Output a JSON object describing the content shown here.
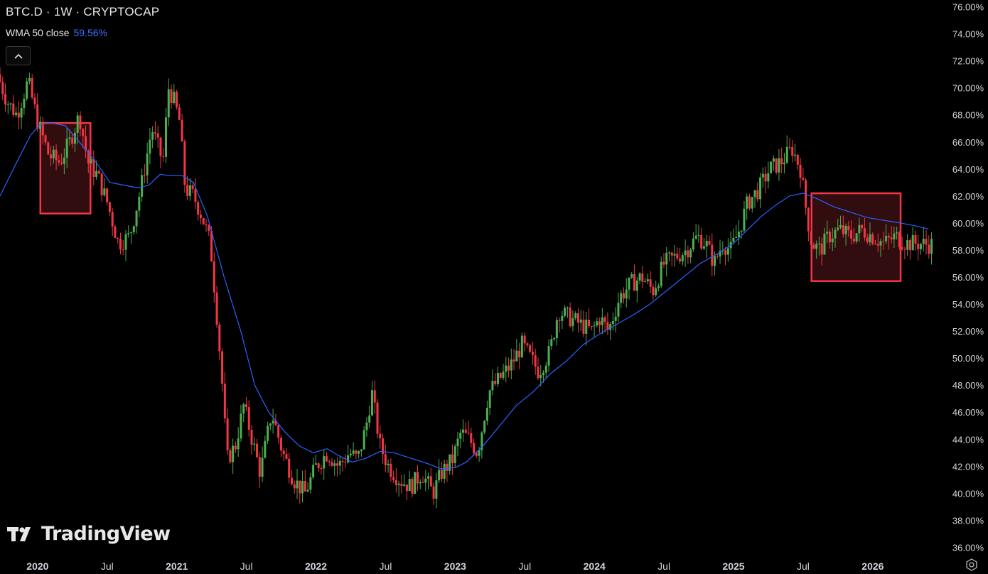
{
  "header": {
    "title": "BTC.D · 1W · CRYPTOCAP"
  },
  "indicator": {
    "label": "WMA 50 close",
    "value": "59.56%"
  },
  "collapse_icon": "chevron-up-icon",
  "logo": {
    "text": "TradingView",
    "icon": "tradingview-logo-icon"
  },
  "settings_icon": "gear-icon",
  "colors": {
    "background": "#000000",
    "up": "#4caf50",
    "down": "#f23645",
    "wma": "#2962ff",
    "box_border": "#f23645",
    "box_fill": "#3a0f13"
  },
  "chart_data": {
    "type": "candlestick",
    "y_ticks": [
      "76.00%",
      "74.00%",
      "72.00%",
      "70.00%",
      "68.00%",
      "66.00%",
      "64.00%",
      "62.00%",
      "60.00%",
      "58.00%",
      "56.00%",
      "54.00%",
      "52.00%",
      "50.00%",
      "48.00%",
      "46.00%",
      "44.00%",
      "42.00%",
      "40.00%",
      "38.00%",
      "36.00%"
    ],
    "x_ticks": [
      "2020",
      "Jul",
      "2021",
      "Jul",
      "2022",
      "Jul",
      "2023",
      "Jul",
      "2024",
      "Jul",
      "2025",
      "Jul",
      "2026"
    ],
    "x_tick_dates": [
      2020.0,
      2020.5,
      2021.0,
      2021.5,
      2022.0,
      2022.5,
      2023.0,
      2023.5,
      2024.0,
      2024.5,
      2025.0,
      2025.5,
      2026.0
    ],
    "ylim": [
      35.5,
      76.5
    ],
    "xlim": [
      2019.73,
      2026.45
    ],
    "grid": false,
    "price_path": [
      [
        2019.73,
        71.0
      ],
      [
        2019.8,
        69.0
      ],
      [
        2019.87,
        68.0
      ],
      [
        2019.95,
        70.5
      ],
      [
        2020.02,
        67.5
      ],
      [
        2020.1,
        65.0
      ],
      [
        2020.18,
        64.5
      ],
      [
        2020.25,
        66.0
      ],
      [
        2020.32,
        68.0
      ],
      [
        2020.38,
        64.5
      ],
      [
        2020.45,
        63.5
      ],
      [
        2020.52,
        61.5
      ],
      [
        2020.6,
        58.5
      ],
      [
        2020.68,
        59.0
      ],
      [
        2020.76,
        62.5
      ],
      [
        2020.84,
        67.0
      ],
      [
        2020.92,
        64.5
      ],
      [
        2020.96,
        70.0
      ],
      [
        2021.0,
        69.0
      ],
      [
        2021.04,
        67.5
      ],
      [
        2021.08,
        62.5
      ],
      [
        2021.14,
        62.0
      ],
      [
        2021.2,
        60.5
      ],
      [
        2021.26,
        58.5
      ],
      [
        2021.3,
        54.0
      ],
      [
        2021.34,
        49.0
      ],
      [
        2021.38,
        42.5
      ],
      [
        2021.44,
        43.5
      ],
      [
        2021.5,
        46.5
      ],
      [
        2021.56,
        44.0
      ],
      [
        2021.62,
        41.5
      ],
      [
        2021.7,
        46.0
      ],
      [
        2021.78,
        43.0
      ],
      [
        2021.86,
        41.0
      ],
      [
        2021.94,
        40.0
      ],
      [
        2022.02,
        42.0
      ],
      [
        2022.1,
        43.0
      ],
      [
        2022.18,
        42.0
      ],
      [
        2022.26,
        43.0
      ],
      [
        2022.32,
        42.5
      ],
      [
        2022.38,
        45.0
      ],
      [
        2022.42,
        47.5
      ],
      [
        2022.48,
        43.5
      ],
      [
        2022.54,
        42.0
      ],
      [
        2022.62,
        41.0
      ],
      [
        2022.7,
        40.5
      ],
      [
        2022.78,
        41.5
      ],
      [
        2022.86,
        40.0
      ],
      [
        2022.92,
        41.5
      ],
      [
        2023.0,
        42.5
      ],
      [
        2023.06,
        44.5
      ],
      [
        2023.12,
        44.0
      ],
      [
        2023.18,
        43.0
      ],
      [
        2023.26,
        47.5
      ],
      [
        2023.34,
        48.5
      ],
      [
        2023.42,
        49.5
      ],
      [
        2023.5,
        51.0
      ],
      [
        2023.56,
        50.0
      ],
      [
        2023.62,
        49.0
      ],
      [
        2023.7,
        50.5
      ],
      [
        2023.76,
        53.5
      ],
      [
        2023.84,
        53.0
      ],
      [
        2023.92,
        52.5
      ],
      [
        2024.0,
        52.0
      ],
      [
        2024.06,
        53.0
      ],
      [
        2024.12,
        52.0
      ],
      [
        2024.2,
        54.5
      ],
      [
        2024.28,
        55.5
      ],
      [
        2024.36,
        56.0
      ],
      [
        2024.44,
        55.0
      ],
      [
        2024.52,
        57.0
      ],
      [
        2024.6,
        57.5
      ],
      [
        2024.68,
        58.0
      ],
      [
        2024.76,
        59.0
      ],
      [
        2024.82,
        58.5
      ],
      [
        2024.88,
        57.0
      ],
      [
        2024.94,
        58.5
      ],
      [
        2025.0,
        58.0
      ],
      [
        2025.06,
        59.5
      ],
      [
        2025.12,
        61.5
      ],
      [
        2025.2,
        62.5
      ],
      [
        2025.28,
        64.0
      ],
      [
        2025.36,
        64.5
      ],
      [
        2025.44,
        65.5
      ],
      [
        2025.5,
        64.0
      ],
      [
        2025.54,
        61.0
      ],
      [
        2025.58,
        58.5
      ],
      [
        2025.64,
        58.0
      ],
      [
        2025.7,
        59.0
      ],
      [
        2025.78,
        59.5
      ],
      [
        2025.86,
        59.0
      ],
      [
        2025.94,
        59.5
      ],
      [
        2026.02,
        59.0
      ],
      [
        2026.1,
        58.5
      ],
      [
        2026.18,
        59.0
      ],
      [
        2026.26,
        58.5
      ],
      [
        2026.34,
        58.5
      ],
      [
        2026.42,
        58.4
      ]
    ],
    "wma": {
      "name": "WMA 50 close",
      "points": [
        [
          2019.73,
          62.0
        ],
        [
          2019.85,
          64.5
        ],
        [
          2019.95,
          66.5
        ],
        [
          2020.02,
          67.3
        ],
        [
          2020.1,
          67.4
        ],
        [
          2020.2,
          67.2
        ],
        [
          2020.3,
          66.0
        ],
        [
          2020.42,
          64.5
        ],
        [
          2020.52,
          63.0
        ],
        [
          2020.62,
          62.8
        ],
        [
          2020.72,
          62.6
        ],
        [
          2020.8,
          62.8
        ],
        [
          2020.88,
          63.6
        ],
        [
          2020.95,
          63.5
        ],
        [
          2021.04,
          63.5
        ],
        [
          2021.12,
          63.0
        ],
        [
          2021.22,
          60.5
        ],
        [
          2021.34,
          56.0
        ],
        [
          2021.46,
          52.0
        ],
        [
          2021.56,
          48.0
        ],
        [
          2021.66,
          46.0
        ],
        [
          2021.78,
          44.5
        ],
        [
          2021.88,
          43.5
        ],
        [
          2021.98,
          43.0
        ],
        [
          2022.08,
          43.3
        ],
        [
          2022.16,
          42.8
        ],
        [
          2022.26,
          42.3
        ],
        [
          2022.36,
          42.6
        ],
        [
          2022.46,
          43.1
        ],
        [
          2022.56,
          43.0
        ],
        [
          2022.68,
          42.6
        ],
        [
          2022.8,
          42.2
        ],
        [
          2022.9,
          41.8
        ],
        [
          2023.0,
          41.9
        ],
        [
          2023.08,
          42.3
        ],
        [
          2023.2,
          43.5
        ],
        [
          2023.32,
          45.0
        ],
        [
          2023.44,
          46.5
        ],
        [
          2023.56,
          47.5
        ],
        [
          2023.68,
          48.8
        ],
        [
          2023.8,
          49.8
        ],
        [
          2023.92,
          51.0
        ],
        [
          2024.04,
          51.8
        ],
        [
          2024.16,
          52.5
        ],
        [
          2024.28,
          53.2
        ],
        [
          2024.4,
          54.0
        ],
        [
          2024.52,
          55.0
        ],
        [
          2024.64,
          56.0
        ],
        [
          2024.76,
          57.0
        ],
        [
          2024.88,
          57.7
        ],
        [
          2025.0,
          58.5
        ],
        [
          2025.1,
          59.5
        ],
        [
          2025.2,
          60.5
        ],
        [
          2025.3,
          61.3
        ],
        [
          2025.4,
          62.0
        ],
        [
          2025.5,
          62.2
        ],
        [
          2025.6,
          61.8
        ],
        [
          2025.72,
          61.2
        ],
        [
          2025.84,
          60.8
        ],
        [
          2025.96,
          60.4
        ],
        [
          2026.08,
          60.2
        ],
        [
          2026.2,
          60.0
        ],
        [
          2026.3,
          59.8
        ],
        [
          2026.4,
          59.56
        ]
      ]
    },
    "highlight_boxes": [
      {
        "x": [
          2020.02,
          2020.38
        ],
        "y": [
          60.7,
          67.4
        ]
      },
      {
        "x": [
          2025.56,
          2026.2
        ],
        "y": [
          55.7,
          62.2
        ]
      }
    ]
  }
}
